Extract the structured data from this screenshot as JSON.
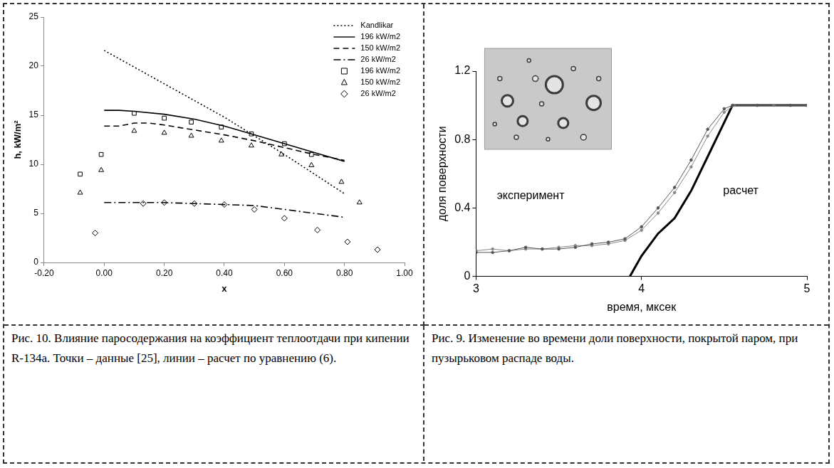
{
  "chart_data": [
    {
      "type": "line",
      "caption": "Рис. 10. Влияние паросодержания на коэффициент теплоотдачи при кипении R-134a. Точки – данные [25], линии – расчет по уравнению (6).",
      "x_label": "x",
      "y_label": "h, kW/m²",
      "xlim": [
        -0.2,
        1.0
      ],
      "xticks": [
        {
          "value": -0.2,
          "label": "-0.20"
        },
        {
          "value": 0,
          "label": "0.00"
        },
        {
          "value": 0.2,
          "label": "0.20"
        },
        {
          "value": 0.4,
          "label": "0.40"
        },
        {
          "value": 0.6,
          "label": "0.60"
        },
        {
          "value": 0.8,
          "label": "0.80"
        },
        {
          "value": 1.0,
          "label": "1.00"
        }
      ],
      "ylim": [
        0,
        25
      ],
      "yticks": [
        0,
        5,
        10,
        15,
        20,
        25
      ],
      "grid": false,
      "legend": "upper right",
      "series": [
        {
          "name": "Kandlikar",
          "type": "line",
          "color": "#000000",
          "line_style": "dotted",
          "x": [
            0,
            0.1,
            0.2,
            0.3,
            0.4,
            0.5,
            0.6,
            0.7,
            0.8
          ],
          "values": [
            21.6,
            19.9,
            18.2,
            16.5,
            14.8,
            12.9,
            11.0,
            9.0,
            7.0
          ]
        },
        {
          "name": "196 kW/m2",
          "type": "line",
          "color": "#000000",
          "line_style": "solid",
          "x": [
            0,
            0.05,
            0.1,
            0.2,
            0.3,
            0.4,
            0.5,
            0.6,
            0.7,
            0.8
          ],
          "values": [
            15.5,
            15.5,
            15.4,
            15.1,
            14.6,
            13.9,
            13.0,
            12.1,
            11.2,
            10.3
          ]
        },
        {
          "name": "150 kW/m2",
          "type": "line",
          "color": "#000000",
          "line_style": "dashed",
          "x": [
            0,
            0.05,
            0.1,
            0.15,
            0.2,
            0.3,
            0.4,
            0.5,
            0.6,
            0.7,
            0.8
          ],
          "values": [
            13.9,
            13.9,
            14.2,
            14.2,
            14.0,
            13.5,
            13.0,
            12.4,
            11.7,
            11.0,
            10.4
          ]
        },
        {
          "name": "26 kW/m2",
          "type": "line",
          "color": "#000000",
          "line_style": "dashdot",
          "x": [
            0,
            0.2,
            0.4,
            0.5,
            0.6,
            0.7,
            0.8
          ],
          "values": [
            6.1,
            6.1,
            5.9,
            5.8,
            5.4,
            5.0,
            4.6
          ]
        },
        {
          "name": "196 kW/m2",
          "type": "scatter",
          "color": "#000000",
          "marker": "square",
          "x": [
            -0.08,
            -0.01,
            0.1,
            0.2,
            0.29,
            0.39,
            0.49,
            0.6,
            0.69
          ],
          "values": [
            9.0,
            11.0,
            15.2,
            14.7,
            14.3,
            13.8,
            13.1,
            12.1,
            11.0
          ]
        },
        {
          "name": "150 kW/m2",
          "type": "scatter",
          "color": "#000000",
          "marker": "triangle",
          "x": [
            -0.08,
            -0.01,
            0.1,
            0.2,
            0.29,
            0.39,
            0.49,
            0.59,
            0.69,
            0.79,
            0.85
          ],
          "values": [
            7.1,
            9.4,
            13.4,
            13.2,
            12.9,
            12.4,
            11.9,
            11.0,
            9.9,
            8.2,
            6.1
          ]
        },
        {
          "name": "26 kW/m2",
          "type": "scatter",
          "color": "#000000",
          "marker": "diamond",
          "x": [
            -0.03,
            0.13,
            0.2,
            0.3,
            0.4,
            0.5,
            0.6,
            0.71,
            0.81,
            0.91
          ],
          "values": [
            3.0,
            6.0,
            6.1,
            6.0,
            5.9,
            5.4,
            4.5,
            3.3,
            2.1,
            1.3
          ]
        }
      ]
    },
    {
      "type": "line",
      "caption": "Рис. 9. Изменение во времени доли поверхности, покрытой паром, при пузырьковом распаде воды.",
      "x_label": "время, мксек",
      "y_label": "доля поверхности",
      "xlim": [
        3,
        5
      ],
      "xticks": [
        3,
        4,
        5
      ],
      "ylim": [
        0,
        1.2
      ],
      "yticks": [
        0,
        0.4,
        0.8,
        1.2
      ],
      "grid": false,
      "annotations": [
        {
          "text": "эксперимент",
          "x": 3.33,
          "y": 0.47
        },
        {
          "text": "расчет",
          "x": 4.6,
          "y": 0.5
        }
      ],
      "series": [
        {
          "type": "line",
          "color": "#555555",
          "line_style": "solid",
          "marker": "circle",
          "x": [
            3.0,
            3.1,
            3.2,
            3.3,
            3.4,
            3.5,
            3.6,
            3.7,
            3.8,
            3.9,
            4.0,
            4.1,
            4.2,
            4.3,
            4.4,
            4.5,
            4.55,
            4.7,
            4.9,
            5.0
          ],
          "values": [
            0.14,
            0.14,
            0.15,
            0.17,
            0.16,
            0.16,
            0.17,
            0.19,
            0.2,
            0.22,
            0.29,
            0.4,
            0.52,
            0.68,
            0.86,
            0.98,
            1.0,
            1.0,
            1.0,
            1.0
          ]
        },
        {
          "type": "line",
          "color": "#888888",
          "line_style": "solid",
          "marker": "circle",
          "x": [
            3.0,
            3.1,
            3.2,
            3.3,
            3.4,
            3.5,
            3.6,
            3.7,
            3.8,
            3.9,
            4.0,
            4.1,
            4.2,
            4.3,
            4.4,
            4.5,
            4.56,
            4.8,
            5.0
          ],
          "values": [
            0.15,
            0.16,
            0.15,
            0.16,
            0.16,
            0.17,
            0.18,
            0.18,
            0.19,
            0.21,
            0.27,
            0.37,
            0.49,
            0.64,
            0.82,
            0.96,
            1.0,
            1.0,
            1.0
          ]
        },
        {
          "type": "line",
          "color": "#000000",
          "line_style": "solid",
          "marker": "none",
          "x": [
            3.93,
            4.0,
            4.1,
            4.2,
            4.3,
            4.4,
            4.5,
            4.55,
            5.0
          ],
          "values": [
            0,
            0.12,
            0.25,
            0.34,
            0.5,
            0.7,
            0.9,
            1.0,
            1.0
          ]
        }
      ]
    }
  ]
}
